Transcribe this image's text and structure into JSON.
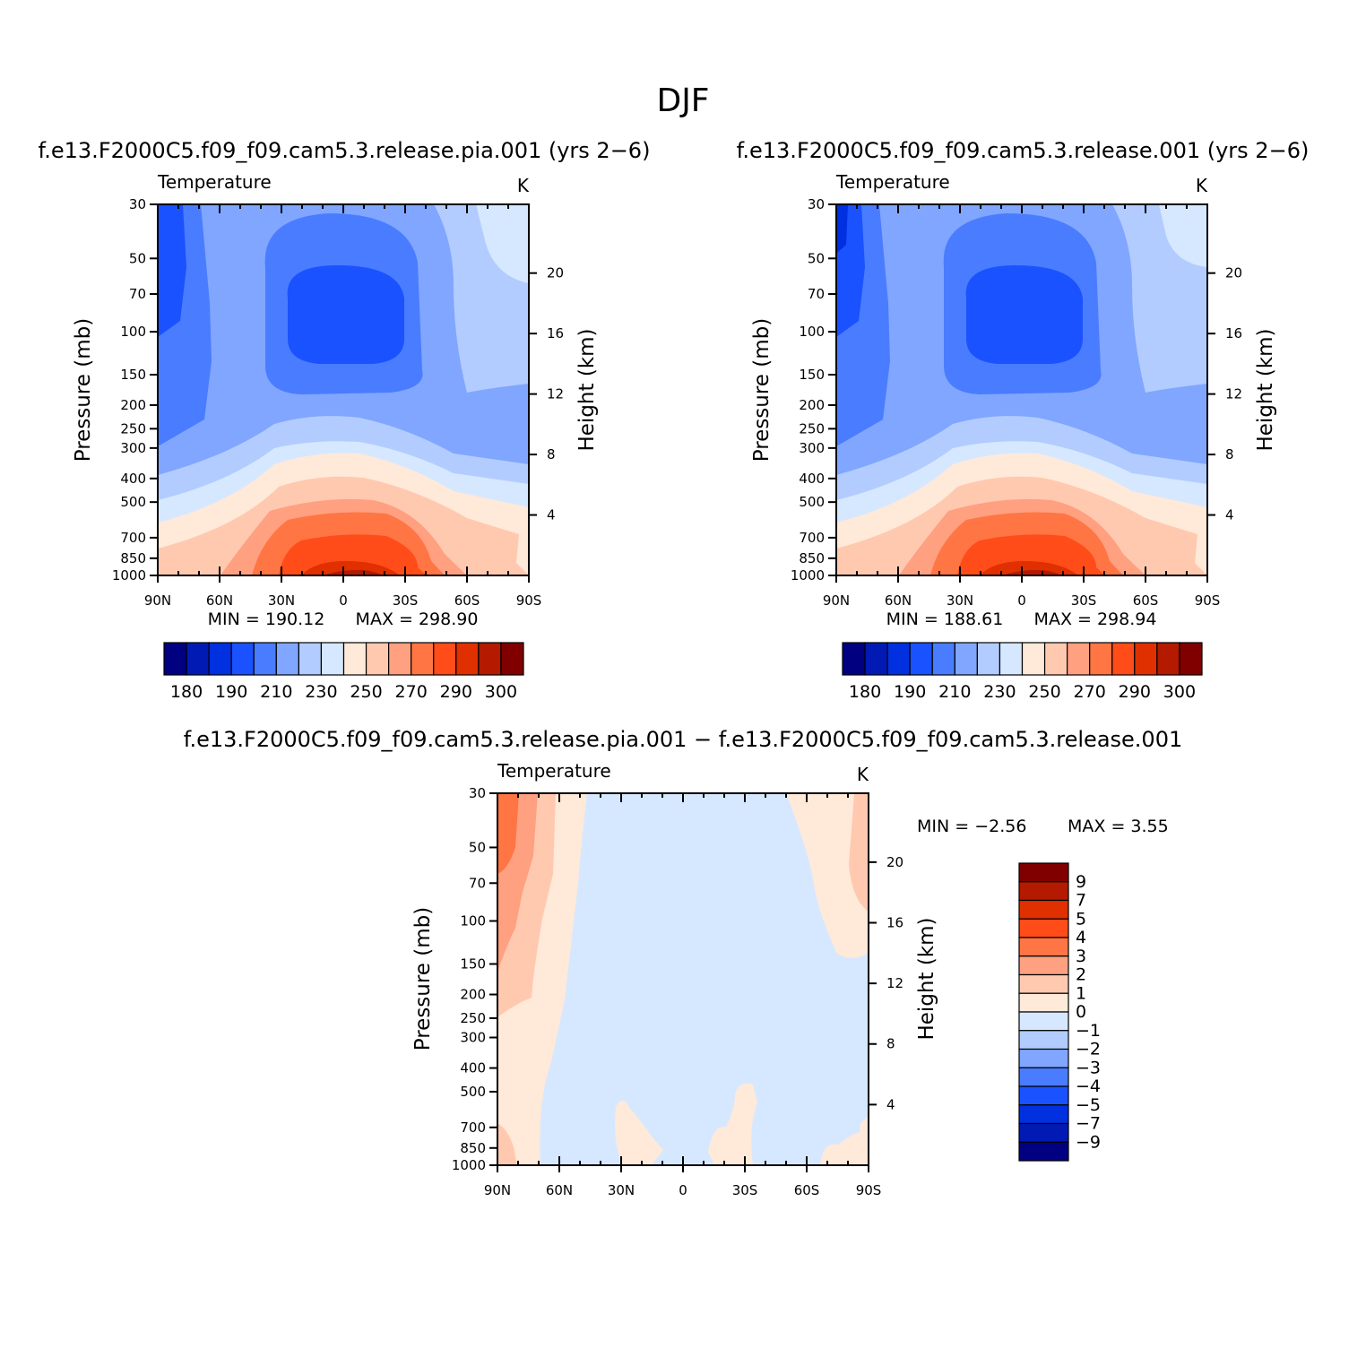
{
  "figure": {
    "title": "DJF",
    "palette": {
      "levels": [
        "#000080",
        "#001ab3",
        "#0030e0",
        "#1a52ff",
        "#4a7cff",
        "#80a6ff",
        "#b3ccff",
        "#d6e8ff",
        "#ffe9d9",
        "#ffc9b0",
        "#ffa080",
        "#ff7544",
        "#ff4c19",
        "#e03000",
        "#b31a00",
        "#800000"
      ],
      "anom_pos": [
        "#ffe9d9",
        "#ffc9b0",
        "#ffa080",
        "#ff7544",
        "#ff4c19",
        "#e03000",
        "#b31a00",
        "#800000"
      ],
      "anom_neg": [
        "#d6e8ff",
        "#b3ccff",
        "#80a6ff",
        "#4a7cff",
        "#1a52ff",
        "#0030e0",
        "#001ab3",
        "#000080"
      ]
    }
  },
  "chart_data": [
    {
      "id": "panel-a",
      "type": "heatmap",
      "title": "f.e13.F2000C5.f09_f09.cam5.3.release.pia.001 (yrs 2−6)",
      "left_label": "Temperature",
      "right_label": "K",
      "xlabel": "",
      "ylabel": "Pressure (mb)",
      "ylabel_right": "Height (km)",
      "x_ticks": [
        {
          "v": 90,
          "label": "90N"
        },
        {
          "v": 60,
          "label": "60N"
        },
        {
          "v": 30,
          "label": "30N"
        },
        {
          "v": 0,
          "label": "0"
        },
        {
          "v": -30,
          "label": "30S"
        },
        {
          "v": -60,
          "label": "60S"
        },
        {
          "v": -90,
          "label": "90S"
        }
      ],
      "x_range": [
        90,
        -90
      ],
      "y_ticks": [
        30,
        50,
        70,
        100,
        150,
        200,
        250,
        300,
        400,
        500,
        700,
        850,
        1000
      ],
      "y_range": [
        30,
        1000
      ],
      "height_ticks": [
        4,
        8,
        12,
        16,
        20
      ],
      "min_text": "MIN = 190.12",
      "max_text": "MAX = 298.90",
      "colorbar": {
        "orientation": "horizontal",
        "labels": [
          "180",
          "190",
          "210",
          "230",
          "250",
          "270",
          "290",
          "300"
        ]
      }
    },
    {
      "id": "panel-b",
      "type": "heatmap",
      "title": "f.e13.F2000C5.f09_f09.cam5.3.release.001 (yrs 2−6)",
      "left_label": "Temperature",
      "right_label": "K",
      "xlabel": "",
      "ylabel": "Pressure (mb)",
      "ylabel_right": "Height (km)",
      "x_ticks": [
        {
          "v": 90,
          "label": "90N"
        },
        {
          "v": 60,
          "label": "60N"
        },
        {
          "v": 30,
          "label": "30N"
        },
        {
          "v": 0,
          "label": "0"
        },
        {
          "v": -30,
          "label": "30S"
        },
        {
          "v": -60,
          "label": "60S"
        },
        {
          "v": -90,
          "label": "90S"
        }
      ],
      "x_range": [
        90,
        -90
      ],
      "y_ticks": [
        30,
        50,
        70,
        100,
        150,
        200,
        250,
        300,
        400,
        500,
        700,
        850,
        1000
      ],
      "y_range": [
        30,
        1000
      ],
      "height_ticks": [
        4,
        8,
        12,
        16,
        20
      ],
      "min_text": "MIN = 188.61",
      "max_text": "MAX = 298.94",
      "colorbar": {
        "orientation": "horizontal",
        "labels": [
          "180",
          "190",
          "210",
          "230",
          "250",
          "270",
          "290",
          "300"
        ]
      }
    },
    {
      "id": "panel-c",
      "type": "heatmap",
      "title": "f.e13.F2000C5.f09_f09.cam5.3.release.pia.001 − f.e13.F2000C5.f09_f09.cam5.3.release.001",
      "left_label": "Temperature",
      "right_label": "K",
      "xlabel": "",
      "ylabel": "Pressure (mb)",
      "ylabel_right": "Height (km)",
      "x_ticks": [
        {
          "v": 90,
          "label": "90N"
        },
        {
          "v": 60,
          "label": "60N"
        },
        {
          "v": 30,
          "label": "30N"
        },
        {
          "v": 0,
          "label": "0"
        },
        {
          "v": -30,
          "label": "30S"
        },
        {
          "v": -60,
          "label": "60S"
        },
        {
          "v": -90,
          "label": "90S"
        }
      ],
      "x_range": [
        90,
        -90
      ],
      "y_ticks": [
        30,
        50,
        70,
        100,
        150,
        200,
        250,
        300,
        400,
        500,
        700,
        850,
        1000
      ],
      "y_range": [
        30,
        1000
      ],
      "height_ticks": [
        4,
        8,
        12,
        16,
        20
      ],
      "min_text": "MIN =   −2.56",
      "max_text": "MAX =    3.55",
      "colorbar": {
        "orientation": "vertical",
        "labels": [
          "9",
          "7",
          "5",
          "4",
          "3",
          "2",
          "1",
          "0",
          "−1",
          "−2",
          "−3",
          "−4",
          "−5",
          "−7",
          "−9"
        ]
      }
    }
  ]
}
